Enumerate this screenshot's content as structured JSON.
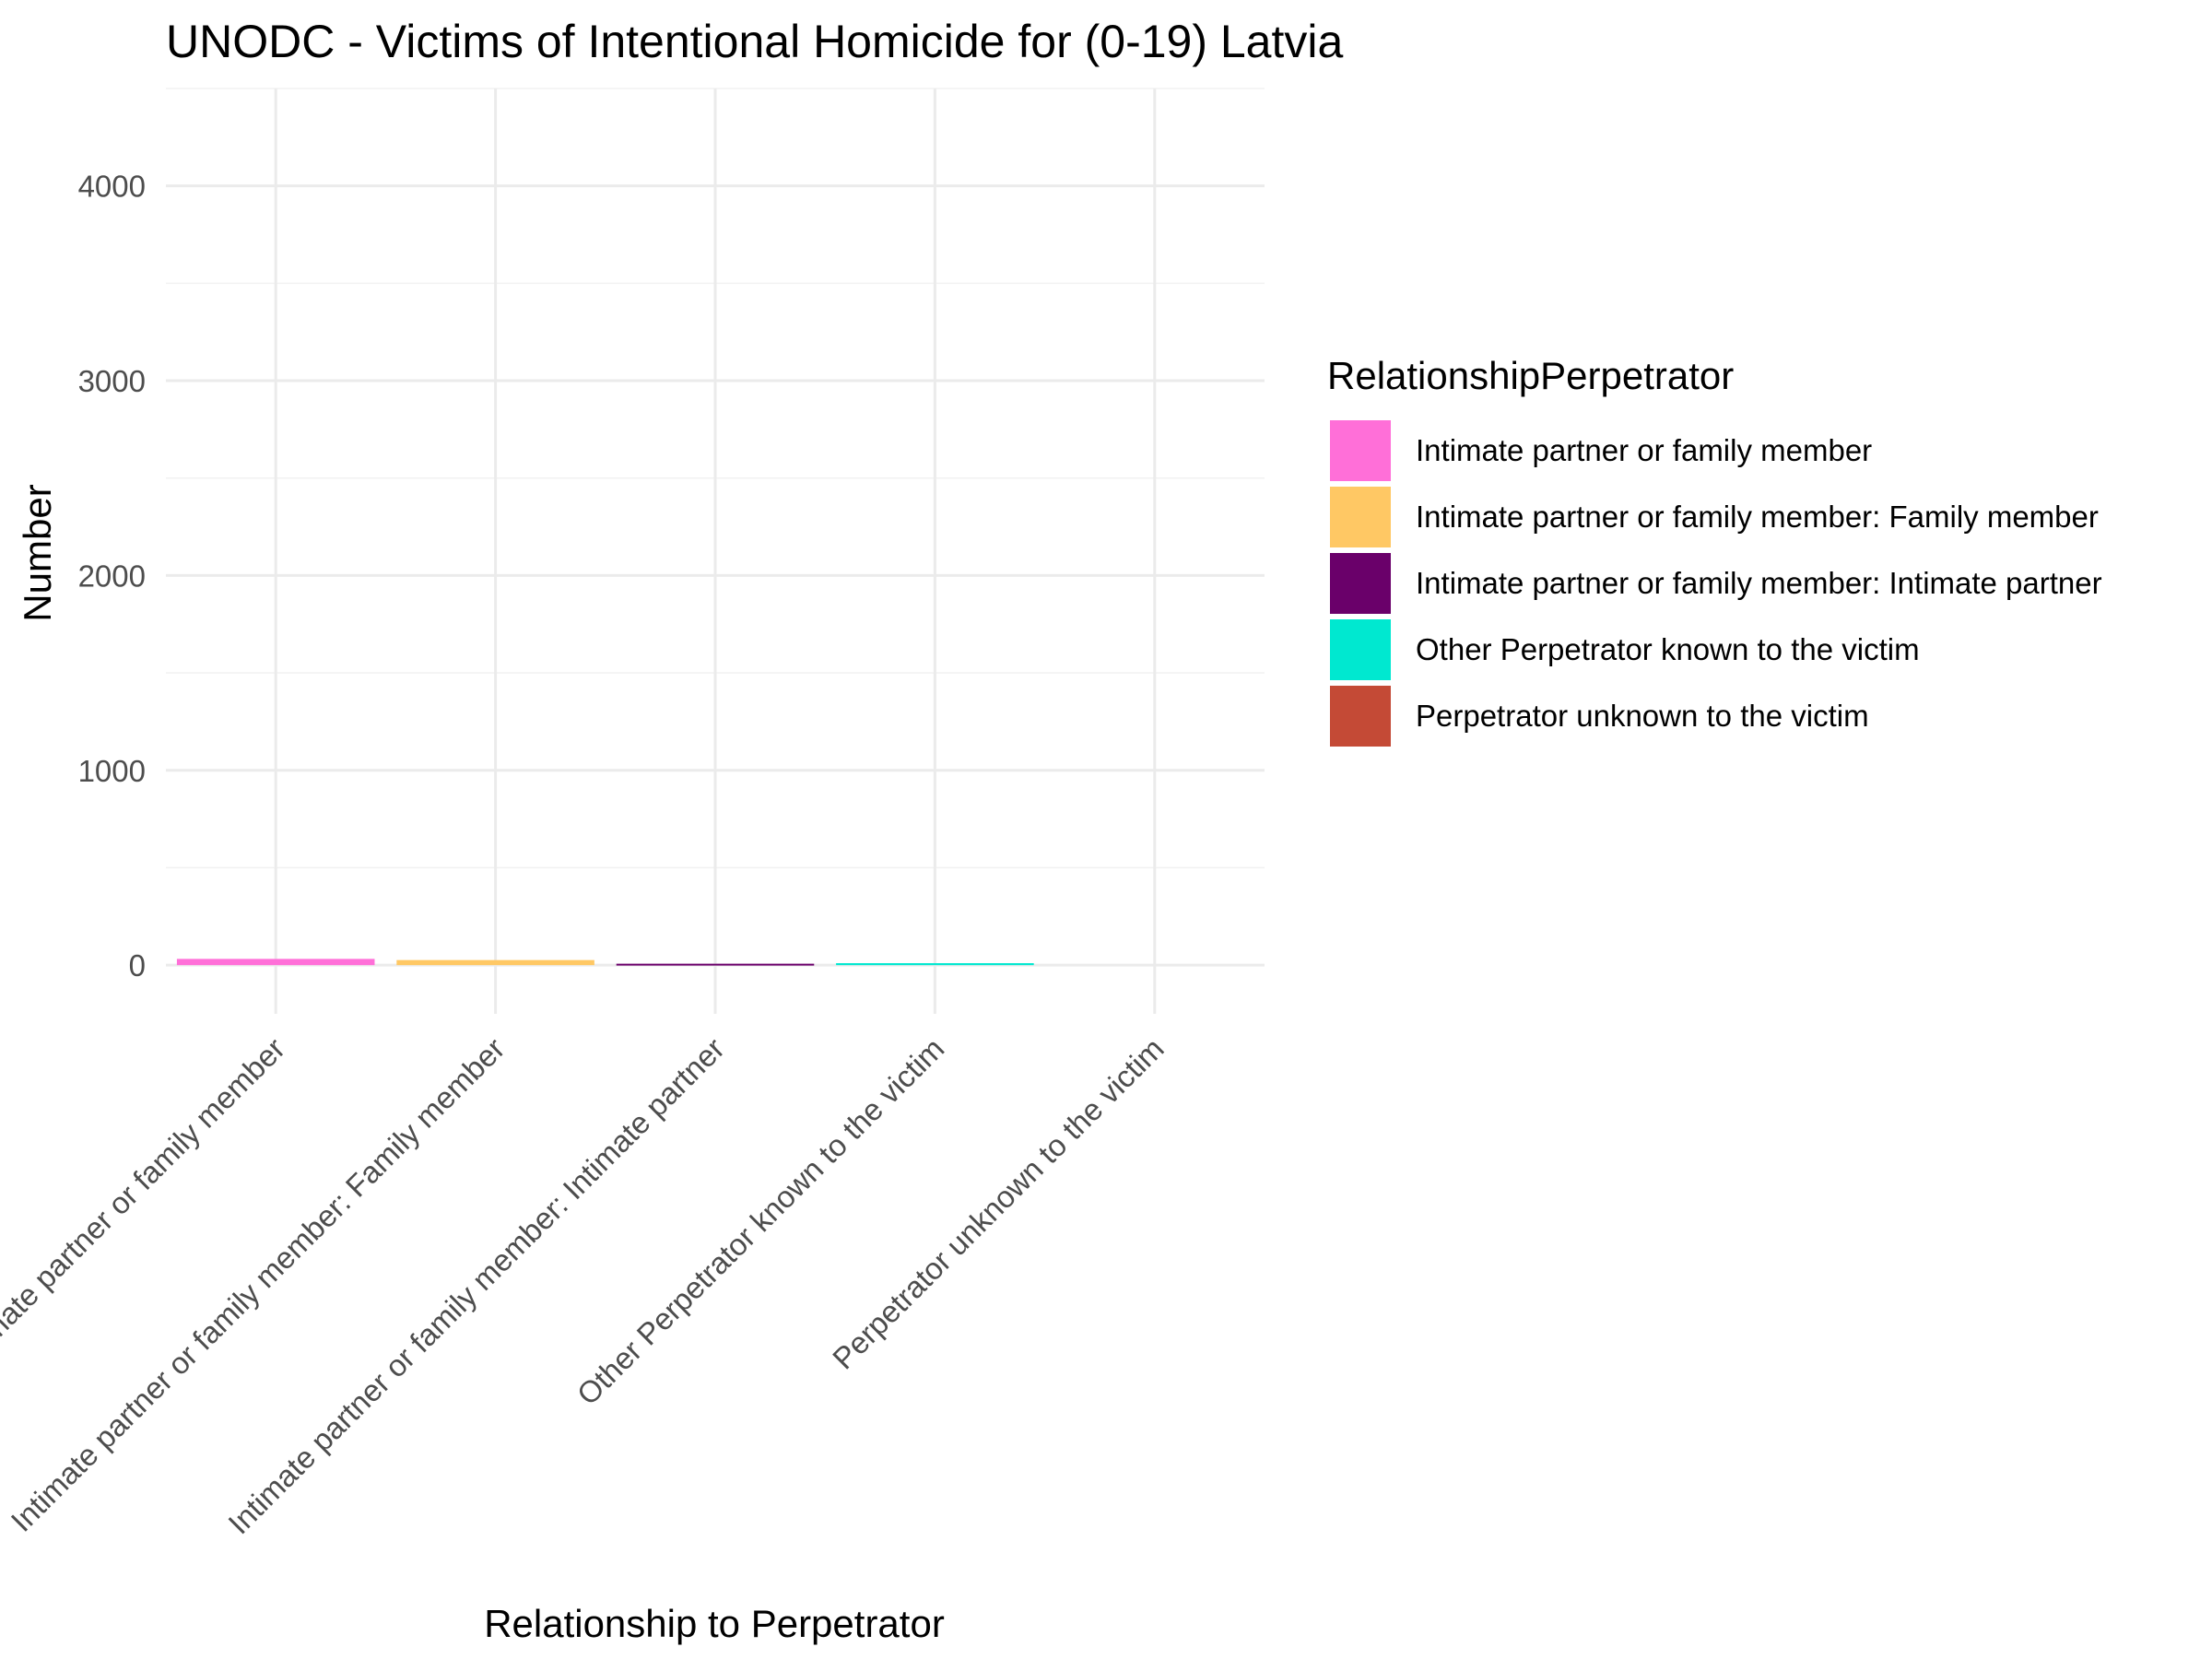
{
  "chart_data": {
    "type": "bar",
    "title": "UNODC - Victims of Intentional Homicide for (0-19) Latvia",
    "xlabel": "Relationship to Perpetrator",
    "ylabel": "Number",
    "ylim": [
      -250,
      4500
    ],
    "yticks": [
      0,
      1000,
      2000,
      3000,
      4000
    ],
    "grid": true,
    "categories": [
      "Intimate partner or family member",
      "Intimate partner or family member: Family member",
      "Intimate partner or family member: Intimate partner",
      "Other Perpetrator known to the victim",
      "Perpetrator unknown to the victim"
    ],
    "values": [
      32,
      26,
      5,
      10,
      0
    ],
    "colors": [
      "#FF6FD8",
      "#FFC864",
      "#6A006A",
      "#00E8D0",
      "#C44A36"
    ],
    "legend": {
      "title": "RelationshipPerpetrator",
      "placement": "right",
      "entries": [
        "Intimate partner or family member",
        "Intimate partner or family member: Family member",
        "Intimate partner or family member: Intimate partner",
        "Other Perpetrator known to the victim",
        "Perpetrator unknown to the victim"
      ]
    }
  }
}
